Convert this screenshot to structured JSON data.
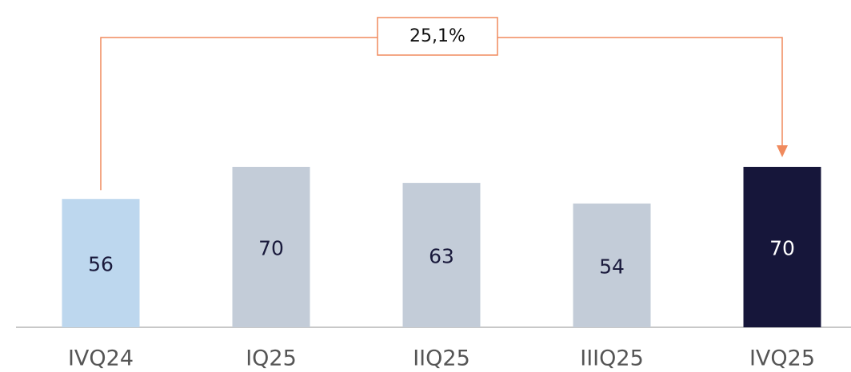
{
  "chart_data": {
    "type": "bar",
    "categories": [
      "IVQ24",
      "IQ25",
      "IIQ25",
      "IIIQ25",
      "IVQ25"
    ],
    "values": [
      56,
      70,
      63,
      54,
      70
    ],
    "colors": [
      "#bdd7ee",
      "#c3ccd8",
      "#c3ccd8",
      "#c3ccd8",
      "#16163a"
    ],
    "annotation": "25,1%",
    "annotation_color": "#f08a5d"
  }
}
